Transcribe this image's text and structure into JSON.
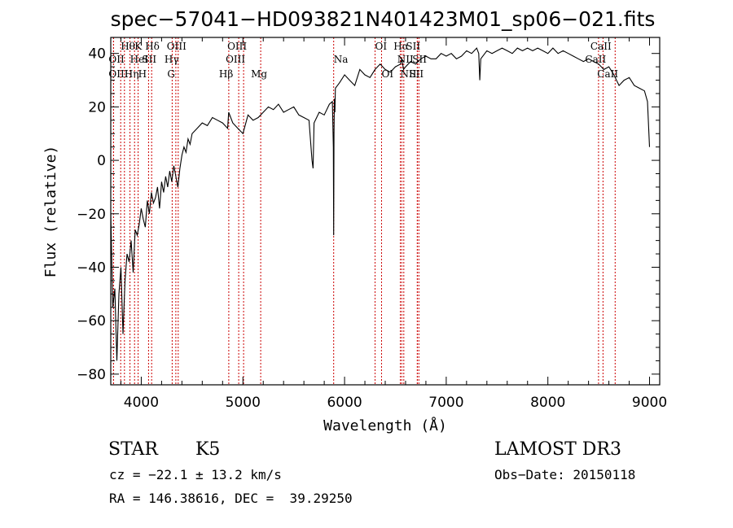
{
  "chart_data": {
    "type": "line",
    "title": "spec−57041−HD093821N401423M01_sp06−021.fits",
    "xlabel": "Wavelength (Å)",
    "ylabel": "Flux (relative)",
    "xlim": [
      3700,
      9100
    ],
    "ylim": [
      -84,
      46
    ],
    "xticks": [
      4000,
      5000,
      6000,
      7000,
      8000,
      9000
    ],
    "yticks": [
      -80,
      -60,
      -40,
      -20,
      0,
      20,
      40
    ],
    "ytick_labels": [
      "−80",
      "−60",
      "−40",
      "−20",
      "0",
      "20",
      "40"
    ],
    "series": [
      {
        "name": "flux",
        "x": [
          3700,
          3720,
          3740,
          3760,
          3780,
          3800,
          3820,
          3840,
          3860,
          3880,
          3900,
          3920,
          3940,
          3960,
          3980,
          4000,
          4020,
          4040,
          4060,
          4080,
          4100,
          4120,
          4140,
          4160,
          4180,
          4200,
          4220,
          4240,
          4260,
          4280,
          4300,
          4320,
          4340,
          4360,
          4380,
          4400,
          4420,
          4440,
          4460,
          4480,
          4500,
          4550,
          4600,
          4650,
          4700,
          4750,
          4800,
          4850,
          4860,
          4900,
          4950,
          5000,
          5050,
          5100,
          5150,
          5200,
          5250,
          5300,
          5350,
          5400,
          5450,
          5500,
          5550,
          5600,
          5650,
          5680,
          5690,
          5700,
          5750,
          5800,
          5850,
          5880,
          5890,
          5893,
          5896,
          5900,
          5905,
          5910,
          5950,
          6000,
          6050,
          6100,
          6150,
          6200,
          6250,
          6300,
          6350,
          6400,
          6450,
          6500,
          6550,
          6563,
          6580,
          6600,
          6650,
          6700,
          6750,
          6800,
          6850,
          6900,
          6950,
          7000,
          7050,
          7100,
          7150,
          7200,
          7250,
          7300,
          7320,
          7330,
          7340,
          7400,
          7450,
          7500,
          7550,
          7600,
          7650,
          7700,
          7750,
          7800,
          7850,
          7900,
          7950,
          8000,
          8050,
          8100,
          8150,
          8200,
          8250,
          8300,
          8350,
          8400,
          8450,
          8500,
          8550,
          8600,
          8650,
          8700,
          8750,
          8800,
          8850,
          8900,
          8950,
          8980,
          9000
        ],
        "y": [
          -20,
          -55,
          -48,
          -75,
          -50,
          -40,
          -65,
          -45,
          -35,
          -38,
          -30,
          -42,
          -26,
          -28,
          -24,
          -18,
          -22,
          -25,
          -15,
          -20,
          -12,
          -16,
          -14,
          -10,
          -18,
          -8,
          -12,
          -6,
          -10,
          -4,
          -8,
          -2,
          -6,
          -10,
          -3,
          2,
          5,
          3,
          8,
          6,
          10,
          12,
          14,
          13,
          16,
          15,
          14,
          12,
          18,
          14,
          12,
          10,
          17,
          15,
          16,
          18,
          20,
          19,
          21,
          18,
          19,
          20,
          17,
          16,
          15,
          0,
          -3,
          14,
          18,
          17,
          21,
          22,
          5,
          -28,
          10,
          23,
          18,
          27,
          29,
          32,
          30,
          28,
          34,
          32,
          31,
          34,
          36,
          34,
          33,
          35,
          36,
          38,
          34,
          35,
          37,
          36,
          38,
          39,
          38,
          38,
          40,
          39,
          40,
          38,
          39,
          41,
          40,
          42,
          40,
          30,
          38,
          41,
          40,
          41,
          42,
          41,
          40,
          42,
          41,
          42,
          41,
          42,
          41,
          40,
          42,
          40,
          41,
          40,
          39,
          38,
          37,
          38,
          37,
          36,
          34,
          35,
          32,
          28,
          30,
          31,
          28,
          27,
          26,
          22,
          5
        ],
        "color": "#000000"
      }
    ],
    "lines": [
      {
        "label": "Hθ",
        "x": 3798,
        "row": 1,
        "dx": 0
      },
      {
        "label": "OII",
        "x": 3727,
        "row": 2,
        "dx": -6
      },
      {
        "label": "OIII",
        "x": 3727,
        "row": 3,
        "dx": -6
      },
      {
        "label": "K",
        "x": 3934,
        "row": 1,
        "dx": 0
      },
      {
        "label": "HeI",
        "x": 3889,
        "row": 2,
        "dx": 0
      },
      {
        "label": "Hη",
        "x": 3835,
        "row": 3,
        "dx": 0
      },
      {
        "label": "Hδ",
        "x": 4102,
        "row": 1,
        "dx": -8
      },
      {
        "label": "SII",
        "x": 4072,
        "row": 2,
        "dx": -8
      },
      {
        "label": "H",
        "x": 3969,
        "row": 3,
        "dx": 0
      },
      {
        "label": "OIII",
        "x": 4363,
        "row": 1,
        "dx": -14
      },
      {
        "label": "Hγ",
        "x": 4340,
        "row": 2,
        "dx": -14
      },
      {
        "label": "G",
        "x": 4304,
        "row": 3,
        "dx": -6
      },
      {
        "label": "OIII",
        "x": 4959,
        "row": 1,
        "dx": -14
      },
      {
        "label": "OIII",
        "x": 5007,
        "row": 2,
        "dx": -22
      },
      {
        "label": "Hβ",
        "x": 4861,
        "row": 3,
        "dx": -12
      },
      {
        "label": "Mg",
        "x": 5175,
        "row": 3,
        "dx": -12
      },
      {
        "label": "Na",
        "x": 5893,
        "row": 2,
        "dx": 0
      },
      {
        "label": "OI",
        "x": 6300,
        "row": 1,
        "dx": 0
      },
      {
        "label": "OI",
        "x": 6364,
        "row": 3,
        "dx": 0
      },
      {
        "label": "Hα",
        "x": 6563,
        "row": 1,
        "dx": -10
      },
      {
        "label": "NII",
        "x": 6583,
        "row": 2,
        "dx": -8
      },
      {
        "label": "NII",
        "x": 6548,
        "row": 3,
        "dx": 0
      },
      {
        "label": "SII",
        "x": 6716,
        "row": 1,
        "dx": -14
      },
      {
        "label": "SII",
        "x": 6731,
        "row": 2,
        "dx": -8
      },
      {
        "label": "SII",
        "x": 6716,
        "row": 3,
        "dx": -10
      },
      {
        "label": "CaII",
        "x": 8498,
        "row": 1,
        "dx": -10
      },
      {
        "label": "CaII",
        "x": 8542,
        "row": 2,
        "dx": -22
      },
      {
        "label": "CaII",
        "x": 8662,
        "row": 3,
        "dx": -22
      }
    ],
    "grid": false,
    "legend": "none"
  },
  "info": {
    "class_type": "STAR",
    "subclass": "K5",
    "survey": "LAMOST DR3",
    "cz": "cz = −22.1 ± 13.2 km/s",
    "obs_date": "Obs−Date: 20150118",
    "radec": "RA = 146.38616, DEC =  39.29250"
  }
}
